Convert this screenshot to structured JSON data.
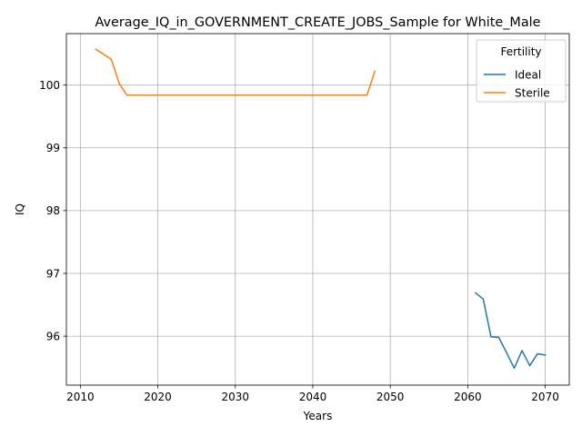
{
  "chart_data": {
    "type": "line",
    "title": "Average_IQ_in_GOVERNMENT_CREATE_JOBS_Sample for White_Male",
    "xlabel": "Years",
    "ylabel": "IQ",
    "xlim": [
      2008.2,
      2073.1
    ],
    "ylim": [
      95.22,
      100.82
    ],
    "xticks": [
      2010,
      2020,
      2030,
      2040,
      2050,
      2060,
      2070
    ],
    "yticks": [
      96,
      97,
      98,
      99,
      100
    ],
    "grid": true,
    "legend": {
      "title": "Fertility",
      "placement": "top-right"
    },
    "series": [
      {
        "name": "Ideal",
        "color": "#1f77b4",
        "x": [
          2061,
          2062,
          2063,
          2064,
          2065,
          2066,
          2067,
          2068,
          2069,
          2070
        ],
        "y": [
          96.69,
          96.59,
          95.99,
          95.98,
          95.74,
          95.49,
          95.77,
          95.53,
          95.72,
          95.7
        ]
      },
      {
        "name": "Sterile",
        "color": "#ff7f0e",
        "x": [
          2012,
          2013,
          2014,
          2015,
          2016,
          2017,
          2018,
          2019,
          2020,
          2021,
          2022,
          2023,
          2024,
          2025,
          2026,
          2027,
          2028,
          2029,
          2030,
          2031,
          2032,
          2033,
          2034,
          2035,
          2036,
          2037,
          2038,
          2039,
          2040,
          2041,
          2042,
          2043,
          2044,
          2045,
          2046,
          2047,
          2048
        ],
        "y": [
          100.57,
          100.49,
          100.41,
          100.03,
          99.84,
          99.84,
          99.84,
          99.84,
          99.84,
          99.84,
          99.84,
          99.84,
          99.84,
          99.84,
          99.84,
          99.84,
          99.84,
          99.84,
          99.84,
          99.84,
          99.84,
          99.84,
          99.84,
          99.84,
          99.84,
          99.84,
          99.84,
          99.84,
          99.84,
          99.84,
          99.84,
          99.84,
          99.84,
          99.84,
          99.84,
          99.84,
          100.22
        ]
      }
    ]
  }
}
